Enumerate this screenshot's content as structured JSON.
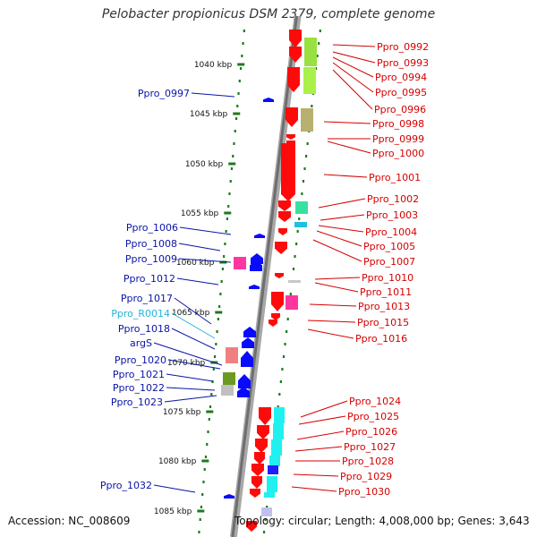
{
  "title": "Pelobacter propionicus DSM 2379, complete genome",
  "footer": {
    "accession": "Accession: NC_008609",
    "summary": "Topology: circular; Length: 4,008,000 bp; Genes: 3,643"
  },
  "colors": {
    "backbone": "#8c8c8c",
    "tick_dot": "#1e7a1e",
    "left_label": "#0a14a8",
    "right_label": "#d60000",
    "rna_label": "#25b4d6"
  },
  "kbp_ticks": [
    "1040 kbp",
    "1045 kbp",
    "1050 kbp",
    "1055 kbp",
    "1060 kbp",
    "1065 kbp",
    "1070 kbp",
    "1075 kbp",
    "1080 kbp",
    "1085 kbp"
  ],
  "left_labels": [
    "Ppro_0997",
    "Ppro_1006",
    "Ppro_1008",
    "Ppro_1009",
    "Ppro_1012",
    "Ppro_1017",
    "Ppro_R0014",
    "Ppro_1018",
    "argS",
    "Ppro_1020",
    "Ppro_1021",
    "Ppro_1022",
    "Ppro_1023",
    "Ppro_1032"
  ],
  "right_labels": [
    "Ppro_0992",
    "Ppro_0993",
    "Ppro_0994",
    "Ppro_0995",
    "Ppro_0996",
    "Ppro_0998",
    "Ppro_0999",
    "Ppro_1000",
    "Ppro_1001",
    "Ppro_1002",
    "Ppro_1003",
    "Ppro_1004",
    "Ppro_1005",
    "Ppro_1007",
    "Ppro_1010",
    "Ppro_1011",
    "Ppro_1013",
    "Ppro_1015",
    "Ppro_1016",
    "Ppro_1024",
    "Ppro_1025",
    "Ppro_1026",
    "Ppro_1027",
    "Ppro_1028",
    "Ppro_1029",
    "Ppro_1030"
  ]
}
